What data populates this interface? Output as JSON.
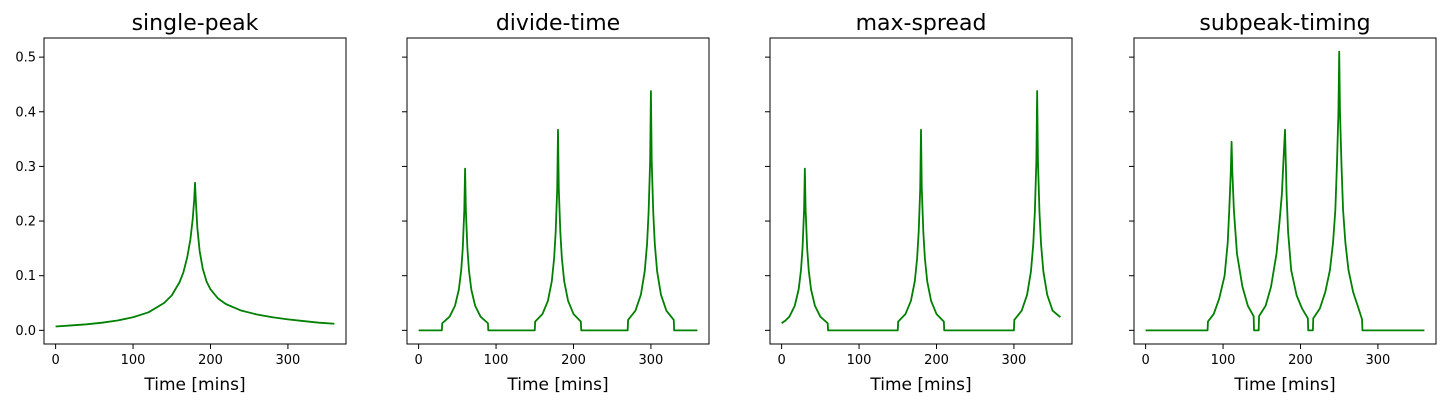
{
  "chart_data": [
    {
      "type": "line",
      "title": "single-peak",
      "xlabel": "Time [mins]",
      "ylabel": "",
      "xlim": [
        -15,
        375
      ],
      "ylim": [
        -0.025,
        0.535
      ],
      "xticks": [
        0,
        100,
        200,
        300
      ],
      "yticks": [
        0.0,
        0.1,
        0.2,
        0.3,
        0.4,
        0.5
      ],
      "ytick_labels_visible": true,
      "grid": false,
      "series": [
        {
          "color": "#008000",
          "x": [
            0,
            20,
            40,
            60,
            80,
            100,
            120,
            140,
            150,
            160,
            165,
            170,
            174,
            177,
            179,
            180,
            181,
            183,
            186,
            190,
            195,
            200,
            210,
            220,
            240,
            260,
            280,
            300,
            320,
            340,
            360
          ],
          "y": [
            0.007,
            0.009,
            0.011,
            0.014,
            0.018,
            0.024,
            0.033,
            0.05,
            0.064,
            0.088,
            0.106,
            0.134,
            0.166,
            0.203,
            0.24,
            0.27,
            0.24,
            0.188,
            0.145,
            0.113,
            0.089,
            0.075,
            0.058,
            0.048,
            0.036,
            0.029,
            0.024,
            0.02,
            0.017,
            0.014,
            0.012
          ]
        }
      ]
    },
    {
      "type": "line",
      "title": "divide-time",
      "xlabel": "Time [mins]",
      "ylabel": "",
      "xlim": [
        -15,
        375
      ],
      "ylim": [
        -0.025,
        0.535
      ],
      "xticks": [
        0,
        100,
        200,
        300
      ],
      "yticks": [
        0.0,
        0.1,
        0.2,
        0.3,
        0.4,
        0.5
      ],
      "ytick_labels_visible": false,
      "grid": false,
      "series": [
        {
          "color": "#008000",
          "x": [
            0,
            30,
            30.5,
            40,
            47,
            52,
            55,
            57,
            59,
            60,
            61,
            63,
            65,
            68,
            73,
            80,
            89.5,
            90,
            150,
            150.5,
            160,
            167,
            172,
            175,
            177,
            179,
            180,
            181,
            183,
            185,
            188,
            193,
            200,
            209.5,
            210,
            270,
            270.5,
            280,
            287,
            292,
            295,
            297,
            299,
            300,
            301,
            303,
            305,
            308,
            313,
            320,
            329.5,
            330,
            360
          ],
          "y": [
            0,
            0,
            0.013,
            0.025,
            0.045,
            0.075,
            0.11,
            0.15,
            0.22,
            0.296,
            0.22,
            0.15,
            0.11,
            0.075,
            0.045,
            0.025,
            0.013,
            0,
            0,
            0.016,
            0.03,
            0.054,
            0.09,
            0.132,
            0.18,
            0.26,
            0.367,
            0.26,
            0.18,
            0.132,
            0.09,
            0.054,
            0.03,
            0.016,
            0,
            0,
            0.019,
            0.036,
            0.065,
            0.108,
            0.158,
            0.216,
            0.31,
            0.438,
            0.31,
            0.216,
            0.158,
            0.108,
            0.065,
            0.036,
            0.019,
            0,
            0
          ]
        }
      ]
    },
    {
      "type": "line",
      "title": "max-spread",
      "xlabel": "Time [mins]",
      "ylabel": "",
      "xlim": [
        -15,
        375
      ],
      "ylim": [
        -0.025,
        0.535
      ],
      "xticks": [
        0,
        100,
        200,
        300
      ],
      "yticks": [
        0.0,
        0.1,
        0.2,
        0.3,
        0.4,
        0.5
      ],
      "ytick_labels_visible": false,
      "grid": false,
      "series": [
        {
          "color": "#008000",
          "x": [
            0,
            5,
            10,
            17,
            22,
            25,
            27,
            29,
            30,
            31,
            33,
            35,
            38,
            43,
            50,
            59.5,
            60,
            150,
            150.5,
            160,
            167,
            172,
            175,
            177,
            179,
            180,
            181,
            183,
            185,
            188,
            193,
            200,
            209.5,
            210,
            300,
            300.5,
            310,
            317,
            322,
            325,
            327,
            329,
            330,
            331,
            333,
            335,
            338,
            343,
            350,
            360
          ],
          "y": [
            0.013,
            0.018,
            0.025,
            0.045,
            0.075,
            0.11,
            0.15,
            0.22,
            0.296,
            0.22,
            0.15,
            0.11,
            0.075,
            0.045,
            0.025,
            0.013,
            0,
            0,
            0.016,
            0.03,
            0.054,
            0.09,
            0.132,
            0.18,
            0.26,
            0.367,
            0.26,
            0.18,
            0.132,
            0.09,
            0.054,
            0.03,
            0.016,
            0,
            0,
            0.019,
            0.036,
            0.065,
            0.108,
            0.158,
            0.216,
            0.31,
            0.438,
            0.31,
            0.216,
            0.158,
            0.108,
            0.065,
            0.036,
            0.024
          ]
        }
      ]
    },
    {
      "type": "line",
      "title": "subpeak-timing",
      "xlabel": "Time [mins]",
      "ylabel": "",
      "xlim": [
        -15,
        375
      ],
      "ylim": [
        -0.025,
        0.535
      ],
      "xticks": [
        0,
        100,
        200,
        300
      ],
      "yticks": [
        0.0,
        0.1,
        0.2,
        0.3,
        0.4,
        0.5
      ],
      "ytick_labels_visible": false,
      "grid": false,
      "series": [
        {
          "color": "#008000",
          "x": [
            0,
            80,
            80.5,
            88,
            95,
            102,
            106,
            108,
            110,
            111,
            112,
            114,
            118,
            125,
            132,
            139.5,
            140,
            146,
            146.5,
            155,
            162,
            169,
            173,
            176,
            178,
            180,
            181,
            182,
            184,
            188,
            195,
            202,
            209.5,
            210,
            216,
            216.5,
            225,
            232,
            238,
            242,
            245,
            247,
            249,
            250,
            251,
            253,
            255,
            258,
            262,
            268,
            275,
            279.5,
            280,
            360
          ],
          "y": [
            0,
            0,
            0.016,
            0.03,
            0.058,
            0.1,
            0.16,
            0.22,
            0.29,
            0.345,
            0.29,
            0.22,
            0.14,
            0.08,
            0.045,
            0.026,
            0,
            0,
            0.026,
            0.045,
            0.08,
            0.14,
            0.2,
            0.25,
            0.31,
            0.367,
            0.31,
            0.25,
            0.18,
            0.11,
            0.064,
            0.04,
            0.022,
            0,
            0,
            0.022,
            0.04,
            0.07,
            0.11,
            0.16,
            0.22,
            0.3,
            0.4,
            0.51,
            0.4,
            0.3,
            0.22,
            0.16,
            0.11,
            0.07,
            0.04,
            0.02,
            0,
            0
          ]
        }
      ]
    }
  ]
}
